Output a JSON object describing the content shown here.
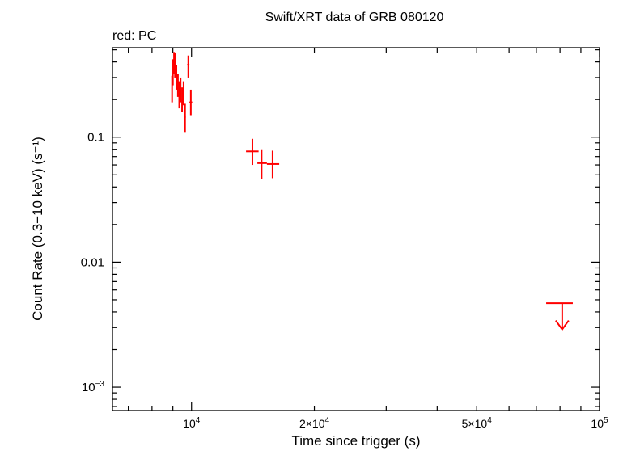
{
  "chart_data": {
    "type": "scatter",
    "title": "Swift/XRT data of GRB 080120",
    "subtitle": "red: PC",
    "xlabel": "Time since trigger (s)",
    "ylabel": "Count Rate (0.3−10 keV) (s⁻¹)",
    "x_scale": "log",
    "y_scale": "log",
    "xlim": [
      6400,
      100000
    ],
    "ylim": [
      0.00065,
      0.52
    ],
    "x_tick_labels": [
      {
        "value": 10000,
        "base": "10",
        "exp": "4"
      },
      {
        "value": 20000,
        "base": "2×10",
        "exp": "4"
      },
      {
        "value": 50000,
        "base": "5×10",
        "exp": "4"
      },
      {
        "value": 100000,
        "base": "10",
        "exp": "5"
      }
    ],
    "y_tick_labels": [
      {
        "value": 0.1,
        "text": "0.1"
      },
      {
        "value": 0.01,
        "text": "0.01"
      },
      {
        "value": 0.001,
        "base": "10",
        "exp": "−3"
      }
    ],
    "color": "#ff0000",
    "series": [
      {
        "points": [
          {
            "x": 8960,
            "xlo": 8930,
            "xhi": 8990,
            "y": 0.245,
            "ylo": 0.19,
            "yhi": 0.31
          },
          {
            "x": 9000,
            "xlo": 8975,
            "xhi": 9025,
            "y": 0.33,
            "ylo": 0.26,
            "yhi": 0.42
          },
          {
            "x": 9060,
            "xlo": 9035,
            "xhi": 9085,
            "y": 0.4,
            "ylo": 0.32,
            "yhi": 0.48
          },
          {
            "x": 9110,
            "xlo": 9085,
            "xhi": 9135,
            "y": 0.38,
            "ylo": 0.3,
            "yhi": 0.47
          },
          {
            "x": 9180,
            "xlo": 9150,
            "xhi": 9210,
            "y": 0.3,
            "ylo": 0.24,
            "yhi": 0.38
          },
          {
            "x": 9260,
            "xlo": 9230,
            "xhi": 9290,
            "y": 0.26,
            "ylo": 0.21,
            "yhi": 0.32
          },
          {
            "x": 9330,
            "xlo": 9300,
            "xhi": 9360,
            "y": 0.22,
            "ylo": 0.17,
            "yhi": 0.28
          },
          {
            "x": 9400,
            "xlo": 9370,
            "xhi": 9430,
            "y": 0.24,
            "ylo": 0.19,
            "yhi": 0.3
          },
          {
            "x": 9480,
            "xlo": 9450,
            "xhi": 9510,
            "y": 0.2,
            "ylo": 0.16,
            "yhi": 0.25
          },
          {
            "x": 9560,
            "xlo": 9530,
            "xhi": 9590,
            "y": 0.23,
            "ylo": 0.18,
            "yhi": 0.28
          },
          {
            "x": 9640,
            "xlo": 9600,
            "xhi": 9680,
            "y": 0.145,
            "ylo": 0.11,
            "yhi": 0.185
          },
          {
            "x": 9820,
            "xlo": 9760,
            "xhi": 9880,
            "y": 0.38,
            "ylo": 0.3,
            "yhi": 0.45
          },
          {
            "x": 9960,
            "xlo": 9880,
            "xhi": 10040,
            "y": 0.19,
            "ylo": 0.15,
            "yhi": 0.24
          },
          {
            "x": 14100,
            "xlo": 13600,
            "xhi": 14600,
            "y": 0.077,
            "ylo": 0.06,
            "yhi": 0.097
          },
          {
            "x": 14850,
            "xlo": 14500,
            "xhi": 15300,
            "y": 0.062,
            "ylo": 0.046,
            "yhi": 0.08
          },
          {
            "x": 15800,
            "xlo": 15300,
            "xhi": 16400,
            "y": 0.061,
            "ylo": 0.047,
            "yhi": 0.078
          }
        ],
        "upper_limits": [
          {
            "x": 81000,
            "xlo": 74000,
            "xhi": 86000,
            "y": 0.0047,
            "arrow_to": 0.0029
          }
        ]
      }
    ]
  }
}
